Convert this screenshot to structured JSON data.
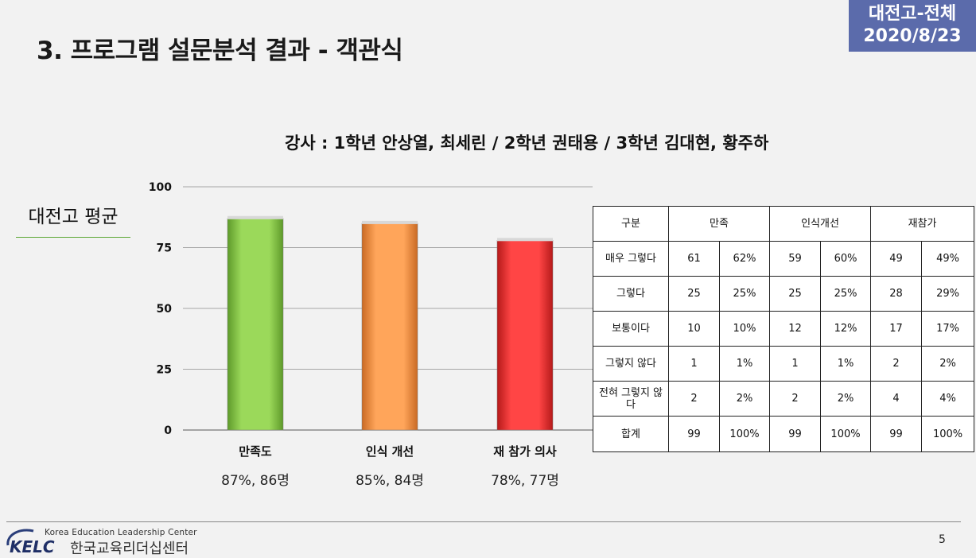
{
  "header": {
    "title": "3. 프로그램 설문분석 결과 - 객관식",
    "badge_line1": "대전고-전체",
    "badge_line2": "2020/8/23",
    "badge_color": "#5b6bab"
  },
  "subtitle": "강사 : 1학년 안상열, 최세린 / 2학년 권태용 / 3학년 김대현, 황주하",
  "side_label": "대전고 평균",
  "chart_data": {
    "type": "bar",
    "categories": [
      "만족도",
      "인식 개선",
      "재 참가 의사"
    ],
    "values": [
      87,
      85,
      78
    ],
    "captions": [
      "87%, 86명",
      "85%, 84명",
      "78%, 77명"
    ],
    "colors": [
      "#92d050",
      "#ff9f50",
      "#ff3b3b"
    ],
    "yticks": [
      0,
      25,
      50,
      75,
      100
    ],
    "ylim": [
      0,
      100
    ],
    "grid": true
  },
  "table": {
    "headers": [
      "구분",
      "만족",
      "인식개선",
      "재참가"
    ],
    "rows": [
      {
        "label": "매우 그렇다",
        "cells": [
          "61",
          "62%",
          "59",
          "60%",
          "49",
          "49%"
        ]
      },
      {
        "label": "그렇다",
        "cells": [
          "25",
          "25%",
          "25",
          "25%",
          "28",
          "29%"
        ]
      },
      {
        "label": "보통이다",
        "cells": [
          "10",
          "10%",
          "12",
          "12%",
          "17",
          "17%"
        ]
      },
      {
        "label": "그렇지 않다",
        "cells": [
          "1",
          "1%",
          "1",
          "1%",
          "2",
          "2%"
        ]
      },
      {
        "label": "전혀 그렇지 않다",
        "cells": [
          "2",
          "2%",
          "2",
          "2%",
          "4",
          "4%"
        ]
      },
      {
        "label": "합계",
        "cells": [
          "99",
          "100%",
          "99",
          "100%",
          "99",
          "100%"
        ]
      }
    ]
  },
  "footer": {
    "logo_text": "KELC",
    "org_en": "Korea Education Leadership Center",
    "org_ko": "한국교육리더십센터",
    "page_number": "5"
  }
}
